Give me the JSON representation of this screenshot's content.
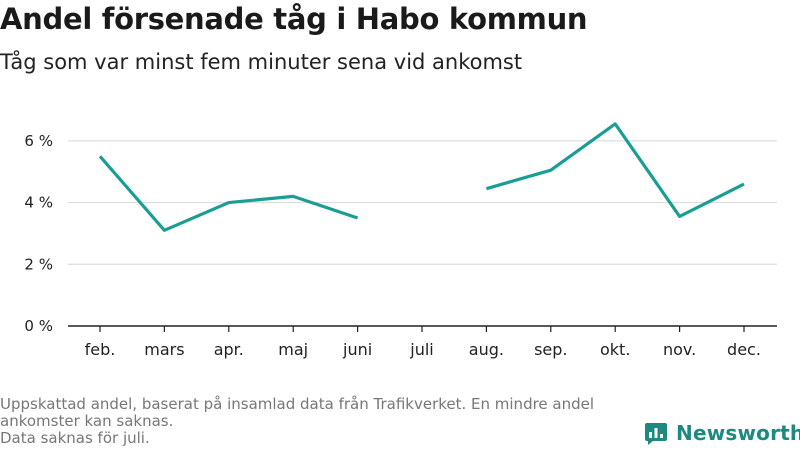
{
  "header": {
    "title": "Andel försenade tåg i Habo kommun",
    "subtitle": "Tåg som var minst fem minuter sena vid ankomst"
  },
  "footnote": {
    "text": "Uppskattad andel, baserat på insamlad data från Trafikverket. En mindre andel ankomster kan saknas.",
    "missing_note": "Data saknas för juli."
  },
  "brand": {
    "name": "Newsworthy",
    "icon": "bar-chart-icon",
    "color": "#1d8a80"
  },
  "colors": {
    "line": "#1a9e94",
    "grid": "#dddddd",
    "axis": "#222222"
  },
  "chart_data": {
    "type": "line",
    "categories": [
      "feb.",
      "mars",
      "apr.",
      "maj",
      "juni",
      "juli",
      "aug.",
      "sep.",
      "okt.",
      "nov.",
      "dec."
    ],
    "series": [
      {
        "values": [
          5.5,
          3.1,
          4.0,
          4.2,
          3.5,
          null,
          4.45,
          5.05,
          6.55,
          3.55,
          4.6
        ]
      }
    ],
    "yticks": [
      0,
      2,
      4,
      6
    ],
    "ytick_labels": [
      "0 %",
      "2 %",
      "4 %",
      "6 %"
    ],
    "ylim": [
      0,
      7
    ],
    "grid": true,
    "xlabel": "",
    "ylabel": ""
  }
}
